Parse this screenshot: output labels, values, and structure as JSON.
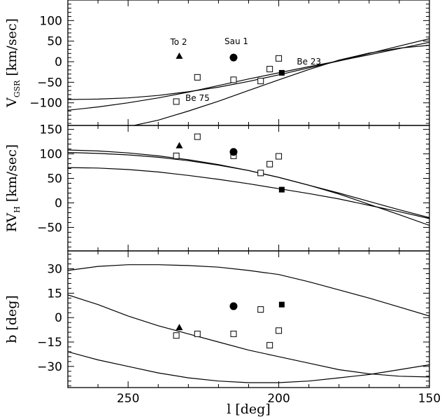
{
  "chart_data": {
    "type": "scatter",
    "shared_x": {
      "label": "l [deg]",
      "range": [
        270,
        150
      ],
      "ticks": [
        250,
        200,
        150
      ],
      "tick_labels": [
        "250",
        "200",
        "150"
      ]
    },
    "panels": [
      {
        "id": "vgsr",
        "ylabel_main": "V",
        "ylabel_sub": "GSR",
        "ylabel_rest": " [km/sec]",
        "yrange": [
          -155,
          150
        ],
        "yticks": [
          100,
          50,
          0,
          -50,
          -100
        ],
        "ytick_labels": [
          "100",
          "50",
          "0",
          "−50",
          "−100"
        ],
        "curves": [
          {
            "x": [
              270,
              260,
              250,
              240,
              230,
              220,
              210,
              200,
              190,
              180,
              170,
              160,
              150
            ],
            "y": [
              -92,
              -91,
              -88,
              -82,
              -73,
              -62,
              -48,
              -32,
              -15,
              2,
              20,
              38,
              56
            ]
          },
          {
            "x": [
              270,
              260,
              250,
              240,
              230,
              220,
              210,
              200,
              190,
              180,
              170,
              160,
              150
            ],
            "y": [
              -118,
              -110,
              -100,
              -88,
              -74,
              -58,
              -42,
              -27,
              -12,
              2,
              17,
              32,
              47
            ]
          },
          {
            "x": [
              270,
              260,
              250,
              240,
              230,
              220,
              210,
              200,
              190,
              180,
              170,
              160,
              150
            ],
            "y": [
              -178,
              -170,
              -158,
              -142,
              -120,
              -96,
              -70,
              -44,
              -19,
              4,
              21,
              33,
              40
            ]
          }
        ],
        "open_squares": {
          "x": [
            234,
            227,
            215,
            206,
            203,
            200
          ],
          "y": [
            -97,
            -38,
            -44,
            -47,
            -18,
            8
          ]
        },
        "filled_circle": {
          "x": [
            215
          ],
          "y": [
            10
          ]
        },
        "filled_square": {
          "x": [
            199
          ],
          "y": [
            -27
          ]
        },
        "filled_triangle": {
          "x": [
            233
          ],
          "y": [
            14
          ]
        },
        "annotations": [
          {
            "text": "To 2",
            "x": 236,
            "y": 41
          },
          {
            "text": "Sau 1",
            "x": 218,
            "y": 43
          },
          {
            "text": "Be 23",
            "x": 194,
            "y": -7
          },
          {
            "text": "Be 75",
            "x": 231,
            "y": -95
          }
        ]
      },
      {
        "id": "rvh",
        "ylabel_main": "RV",
        "ylabel_sub": "H",
        "ylabel_rest": " [km/sec]",
        "yrange": [
          -98,
          158
        ],
        "yticks": [
          150,
          100,
          50,
          0,
          -50
        ],
        "ytick_labels": [
          "150",
          "100",
          "50",
          "0",
          "−50"
        ],
        "curves": [
          {
            "x": [
              270,
              260,
              250,
              240,
              230,
              220,
              210,
              200,
              190,
              180,
              170,
              160,
              150
            ],
            "y": [
              108,
              106,
              102,
              96,
              88,
              78,
              66,
              52,
              36,
              20,
              3,
              -14,
              -30
            ]
          },
          {
            "x": [
              270,
              260,
              250,
              240,
              230,
              220,
              210,
              200,
              190,
              180,
              170,
              160,
              150
            ],
            "y": [
              103,
              101,
              98,
              93,
              86,
              77,
              66,
              52,
              36,
              18,
              -3,
              -24,
              -46
            ]
          },
          {
            "x": [
              270,
              260,
              250,
              240,
              230,
              220,
              210,
              200,
              190,
              180,
              170,
              160,
              150
            ],
            "y": [
              72,
              71,
              68,
              63,
              56,
              48,
              39,
              29,
              19,
              8,
              -5,
              -18,
              -32
            ]
          }
        ],
        "open_squares": {
          "x": [
            234,
            227,
            215,
            206,
            203,
            200
          ],
          "y": [
            96,
            135,
            96,
            61,
            79,
            95
          ]
        },
        "filled_circle": {
          "x": [
            215
          ],
          "y": [
            104
          ]
        },
        "filled_square": {
          "x": [
            199
          ],
          "y": [
            27
          ]
        },
        "filled_triangle": {
          "x": [
            233
          ],
          "y": [
            117
          ]
        }
      },
      {
        "id": "b",
        "ylabel_main": "b [deg]",
        "ylabel_sub": "",
        "ylabel_rest": "",
        "yrange": [
          -43,
          41
        ],
        "yticks": [
          30,
          15,
          0,
          -15,
          -30
        ],
        "ytick_labels": [
          "30",
          "15",
          "0",
          "−15",
          "−30"
        ],
        "curves": [
          {
            "x": [
              270,
              260,
              250,
              240,
              230,
              220,
              210,
              200,
              190,
              180,
              170,
              160,
              150
            ],
            "y": [
              29,
              31.5,
              32.5,
              32.5,
              32,
              31,
              29,
              26.5,
              22,
              17,
              12,
              6.5,
              1
            ]
          },
          {
            "x": [
              270,
              260,
              250,
              240,
              230,
              220,
              210,
              200,
              190,
              180,
              170,
              160,
              150
            ],
            "y": [
              14,
              8,
              1,
              -5,
              -10,
              -15,
              -20,
              -24,
              -28,
              -32,
              -34.5,
              -36,
              -36.5
            ]
          },
          {
            "x": [
              270,
              260,
              250,
              240,
              230,
              220,
              210,
              200,
              190,
              180,
              170,
              160,
              150
            ],
            "y": [
              -21,
              -26,
              -30,
              -34,
              -37,
              -39,
              -40,
              -40,
              -39,
              -37,
              -35,
              -32,
              -29
            ]
          }
        ],
        "open_squares": {
          "x": [
            234,
            227,
            215,
            206,
            203,
            200
          ],
          "y": [
            -11,
            -10,
            -10,
            5,
            -17,
            -8
          ]
        },
        "filled_circle": {
          "x": [
            215
          ],
          "y": [
            7
          ]
        },
        "filled_square": {
          "x": [
            199
          ],
          "y": [
            8
          ]
        },
        "filled_triangle": {
          "x": [
            233
          ],
          "y": [
            -6
          ]
        }
      }
    ]
  }
}
